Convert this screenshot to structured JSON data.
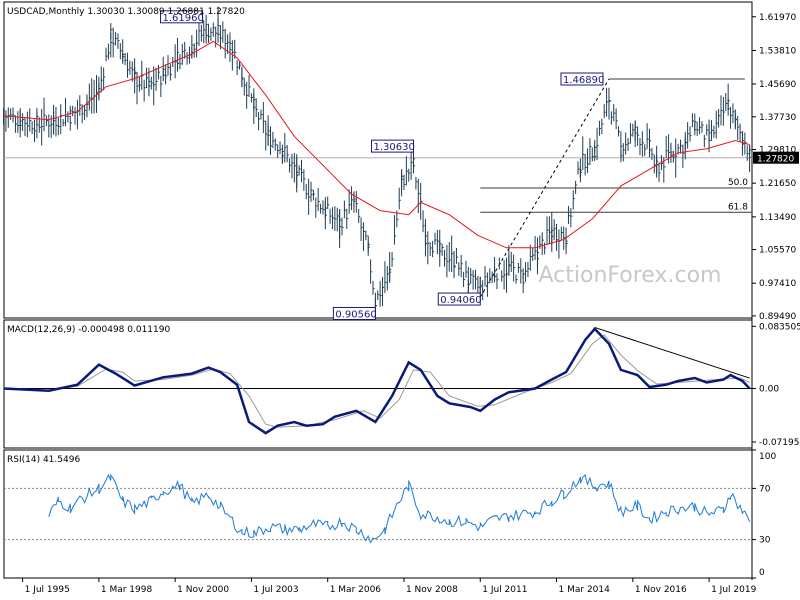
{
  "chart_data": [
    {
      "type": "bar",
      "title": "USDCAD,Monthly",
      "ohlc_text": "1.30030 1.30089 1.26881 1.27820",
      "last_price": "1.27820",
      "ylim": [
        0.8898,
        1.6555
      ],
      "y_ticks": [
        "1.61970",
        "1.53810",
        "1.45690",
        "1.37730",
        "1.29810",
        "1.21650",
        "1.13490",
        "1.05570",
        "0.97410",
        "0.89490"
      ],
      "x_ticks": [
        "1 Jul 1995",
        "1 Mar 1998",
        "1 Nov 2000",
        "1 Jul 2003",
        "1 Mar 2006",
        "1 Nov 2008",
        "1 Jul 2011",
        "1 Mar 2014",
        "1 Nov 2016",
        "1 Jul 2019"
      ],
      "annotations": [
        {
          "label": "1.61960",
          "date": "2002-01",
          "value": 1.6196
        },
        {
          "label": "1.30630",
          "date": "2009-03",
          "value": 1.3063
        },
        {
          "label": "0.90560",
          "date": "2007-11",
          "value": 0.9056
        },
        {
          "label": "0.94060",
          "date": "2011-07",
          "value": 0.9406
        },
        {
          "label": "1.46890",
          "date": "2016-01",
          "value": 1.4689
        }
      ],
      "fib_levels": [
        {
          "label": "50.0",
          "value": 1.2048
        },
        {
          "label": "61.8",
          "value": 1.146
        }
      ],
      "series": [
        {
          "name": "price_close",
          "points": [
            [
              "1994-11",
              1.38
            ],
            [
              "1995-06",
              1.37
            ],
            [
              "1996-01",
              1.36
            ],
            [
              "1996-08",
              1.37
            ],
            [
              "1997-03",
              1.38
            ],
            [
              "1997-10",
              1.41
            ],
            [
              "1998-03",
              1.44
            ],
            [
              "1998-08",
              1.57
            ],
            [
              "1999-01",
              1.53
            ],
            [
              "1999-06",
              1.47
            ],
            [
              "1999-12",
              1.45
            ],
            [
              "2000-06",
              1.48
            ],
            [
              "2000-12",
              1.52
            ],
            [
              "2001-06",
              1.55
            ],
            [
              "2001-12",
              1.59
            ],
            [
              "2002-05",
              1.58
            ],
            [
              "2002-10",
              1.56
            ],
            [
              "2003-03",
              1.48
            ],
            [
              "2003-08",
              1.4
            ],
            [
              "2004-02",
              1.33
            ],
            [
              "2004-08",
              1.3
            ],
            [
              "2005-02",
              1.24
            ],
            [
              "2005-08",
              1.19
            ],
            [
              "2006-02",
              1.15
            ],
            [
              "2006-08",
              1.12
            ],
            [
              "2007-02",
              1.17
            ],
            [
              "2007-08",
              1.05
            ],
            [
              "2007-11",
              0.93
            ],
            [
              "2008-05",
              1.0
            ],
            [
              "2008-10",
              1.22
            ],
            [
              "2009-03",
              1.26
            ],
            [
              "2009-08",
              1.09
            ],
            [
              "2010-02",
              1.05
            ],
            [
              "2010-08",
              1.03
            ],
            [
              "2011-02",
              0.98
            ],
            [
              "2011-07",
              0.96
            ],
            [
              "2012-01",
              1.0
            ],
            [
              "2012-07",
              1.01
            ],
            [
              "2013-01",
              0.99
            ],
            [
              "2013-07",
              1.05
            ],
            [
              "2014-01",
              1.1
            ],
            [
              "2014-07",
              1.09
            ],
            [
              "2015-01",
              1.26
            ],
            [
              "2015-07",
              1.3
            ],
            [
              "2016-01",
              1.42
            ],
            [
              "2016-06",
              1.3
            ],
            [
              "2016-12",
              1.34
            ],
            [
              "2017-06",
              1.3
            ],
            [
              "2017-09",
              1.25
            ],
            [
              "2018-03",
              1.29
            ],
            [
              "2018-09",
              1.31
            ],
            [
              "2019-01",
              1.36
            ],
            [
              "2019-07",
              1.32
            ],
            [
              "2020-03",
              1.41
            ],
            [
              "2020-06",
              1.36
            ],
            [
              "2020-09",
              1.33
            ],
            [
              "2020-11",
              1.3
            ],
            [
              "2020-12",
              1.28
            ]
          ]
        },
        {
          "name": "price_ma",
          "points": [
            [
              "1994-11",
              1.38
            ],
            [
              "1996-06",
              1.37
            ],
            [
              "1997-06",
              1.39
            ],
            [
              "1998-06",
              1.45
            ],
            [
              "1999-06",
              1.47
            ],
            [
              "2000-06",
              1.5
            ],
            [
              "2001-06",
              1.53
            ],
            [
              "2002-03",
              1.56
            ],
            [
              "2003-01",
              1.52
            ],
            [
              "2004-01",
              1.43
            ],
            [
              "2005-01",
              1.33
            ],
            [
              "2006-01",
              1.26
            ],
            [
              "2007-01",
              1.19
            ],
            [
              "2008-01",
              1.15
            ],
            [
              "2009-01",
              1.14
            ],
            [
              "2009-06",
              1.17
            ],
            [
              "2010-06",
              1.14
            ],
            [
              "2011-06",
              1.09
            ],
            [
              "2012-06",
              1.06
            ],
            [
              "2013-06",
              1.06
            ],
            [
              "2014-06",
              1.08
            ],
            [
              "2015-06",
              1.13
            ],
            [
              "2016-06",
              1.21
            ],
            [
              "2017-06",
              1.25
            ],
            [
              "2018-06",
              1.29
            ],
            [
              "2019-06",
              1.3
            ],
            [
              "2020-06",
              1.32
            ],
            [
              "2020-12",
              1.31
            ]
          ]
        },
        {
          "name": "macd",
          "points": [
            [
              "1994-11",
              0.0
            ],
            [
              "1996-06",
              -0.003
            ],
            [
              "1997-06",
              0.005
            ],
            [
              "1998-03",
              0.032
            ],
            [
              "1998-10",
              0.02
            ],
            [
              "1999-06",
              0.004
            ],
            [
              "2000-06",
              0.015
            ],
            [
              "2001-06",
              0.02
            ],
            [
              "2002-01",
              0.028
            ],
            [
              "2002-06",
              0.022
            ],
            [
              "2003-01",
              0.005
            ],
            [
              "2003-06",
              -0.045
            ],
            [
              "2004-01",
              -0.06
            ],
            [
              "2004-06",
              -0.05
            ],
            [
              "2005-01",
              -0.045
            ],
            [
              "2005-06",
              -0.05
            ],
            [
              "2006-01",
              -0.048
            ],
            [
              "2006-06",
              -0.038
            ],
            [
              "2007-03",
              -0.03
            ],
            [
              "2007-11",
              -0.045
            ],
            [
              "2008-06",
              -0.01
            ],
            [
              "2009-01",
              0.035
            ],
            [
              "2009-06",
              0.025
            ],
            [
              "2010-01",
              -0.01
            ],
            [
              "2010-06",
              -0.02
            ],
            [
              "2011-03",
              -0.025
            ],
            [
              "2011-07",
              -0.03
            ],
            [
              "2012-01",
              -0.015
            ],
            [
              "2012-07",
              -0.005
            ],
            [
              "2013-06",
              0.0
            ],
            [
              "2014-01",
              0.012
            ],
            [
              "2014-07",
              0.022
            ],
            [
              "2015-03",
              0.065
            ],
            [
              "2015-07",
              0.08
            ],
            [
              "2016-01",
              0.06
            ],
            [
              "2016-06",
              0.025
            ],
            [
              "2017-01",
              0.018
            ],
            [
              "2017-06",
              0.002
            ],
            [
              "2018-01",
              0.005
            ],
            [
              "2018-06",
              0.01
            ],
            [
              "2019-01",
              0.014
            ],
            [
              "2019-06",
              0.008
            ],
            [
              "2020-01",
              0.012
            ],
            [
              "2020-04",
              0.018
            ],
            [
              "2020-09",
              0.01
            ],
            [
              "2020-12",
              0.0
            ]
          ]
        },
        {
          "name": "macd_signal",
          "points": [
            [
              "1994-11",
              0.0
            ],
            [
              "1996-06",
              -0.002
            ],
            [
              "1997-06",
              0.003
            ],
            [
              "1998-06",
              0.026
            ],
            [
              "1999-01",
              0.022
            ],
            [
              "1999-06",
              0.01
            ],
            [
              "2000-06",
              0.012
            ],
            [
              "2001-06",
              0.018
            ],
            [
              "2002-03",
              0.026
            ],
            [
              "2002-10",
              0.02
            ],
            [
              "2003-06",
              -0.01
            ],
            [
              "2004-01",
              -0.048
            ],
            [
              "2004-06",
              -0.052
            ],
            [
              "2005-06",
              -0.05
            ],
            [
              "2006-06",
              -0.042
            ],
            [
              "2007-06",
              -0.03
            ],
            [
              "2008-01",
              -0.04
            ],
            [
              "2008-09",
              -0.015
            ],
            [
              "2009-03",
              0.025
            ],
            [
              "2009-10",
              0.022
            ],
            [
              "2010-06",
              -0.01
            ],
            [
              "2011-06",
              -0.024
            ],
            [
              "2012-01",
              -0.022
            ],
            [
              "2013-01",
              -0.006
            ],
            [
              "2014-01",
              0.008
            ],
            [
              "2014-09",
              0.02
            ],
            [
              "2015-06",
              0.06
            ],
            [
              "2015-11",
              0.072
            ],
            [
              "2016-06",
              0.045
            ],
            [
              "2017-01",
              0.024
            ],
            [
              "2017-09",
              0.006
            ],
            [
              "2018-06",
              0.008
            ],
            [
              "2019-06",
              0.011
            ],
            [
              "2020-03",
              0.013
            ],
            [
              "2020-08",
              0.014
            ],
            [
              "2020-12",
              0.008
            ]
          ]
        },
        {
          "name": "rsi",
          "points": [
            [
              "1996-06",
              49
            ],
            [
              "1996-10",
              60
            ],
            [
              "1997-03",
              55
            ],
            [
              "1997-08",
              62
            ],
            [
              "1998-03",
              70
            ],
            [
              "1998-08",
              78
            ],
            [
              "1999-01",
              60
            ],
            [
              "1999-06",
              54
            ],
            [
              "2000-01",
              60
            ],
            [
              "2000-06",
              68
            ],
            [
              "2001-01",
              72
            ],
            [
              "2001-06",
              58
            ],
            [
              "2002-01",
              65
            ],
            [
              "2002-06",
              55
            ],
            [
              "2003-03",
              36
            ],
            [
              "2003-08",
              35
            ],
            [
              "2004-03",
              40
            ],
            [
              "2004-09",
              38
            ],
            [
              "2005-03",
              38
            ],
            [
              "2005-09",
              42
            ],
            [
              "2006-03",
              40
            ],
            [
              "2006-09",
              44
            ],
            [
              "2007-03",
              38
            ],
            [
              "2007-10",
              30
            ],
            [
              "2008-03",
              38
            ],
            [
              "2008-09",
              60
            ],
            [
              "2009-01",
              72
            ],
            [
              "2009-06",
              50
            ],
            [
              "2010-01",
              48
            ],
            [
              "2010-06",
              44
            ],
            [
              "2011-01",
              44
            ],
            [
              "2011-07",
              40
            ],
            [
              "2012-01",
              46
            ],
            [
              "2012-07",
              48
            ],
            [
              "2013-06",
              52
            ],
            [
              "2014-01",
              60
            ],
            [
              "2014-06",
              66
            ],
            [
              "2015-01",
              78
            ],
            [
              "2015-07",
              72
            ],
            [
              "2016-01",
              74
            ],
            [
              "2016-06",
              52
            ],
            [
              "2017-01",
              56
            ],
            [
              "2017-06",
              46
            ],
            [
              "2018-01",
              52
            ],
            [
              "2018-06",
              54
            ],
            [
              "2019-01",
              56
            ],
            [
              "2019-06",
              50
            ],
            [
              "2020-01",
              53
            ],
            [
              "2020-04",
              66
            ],
            [
              "2020-09",
              52
            ],
            [
              "2020-12",
              44
            ]
          ]
        }
      ],
      "trendline_dashed": [
        [
          "2011-07",
          0.9406
        ],
        [
          "2016-01",
          1.4689
        ]
      ]
    },
    {
      "type": "line",
      "title": "MACD(12,26,9) -0.000498 0.011190",
      "ylim": [
        -0.08,
        0.092
      ],
      "y_ticks": [
        "0.083505",
        "0.00",
        "-0.07195"
      ],
      "zero_label": "0.00"
    },
    {
      "type": "line",
      "title": "RSI(14) 41.5496",
      "ylim": [
        0,
        100
      ],
      "y_ticks": [
        "100",
        "70",
        "30",
        "0"
      ]
    }
  ],
  "watermark": "ActionForex.com",
  "colors": {
    "price": "#1f3d52",
    "ma": "#e8141e",
    "macd": "#0a1a7a",
    "signal": "#9a9a9a",
    "rsi": "#1f7ad6",
    "hline": "#3a3a3a"
  }
}
